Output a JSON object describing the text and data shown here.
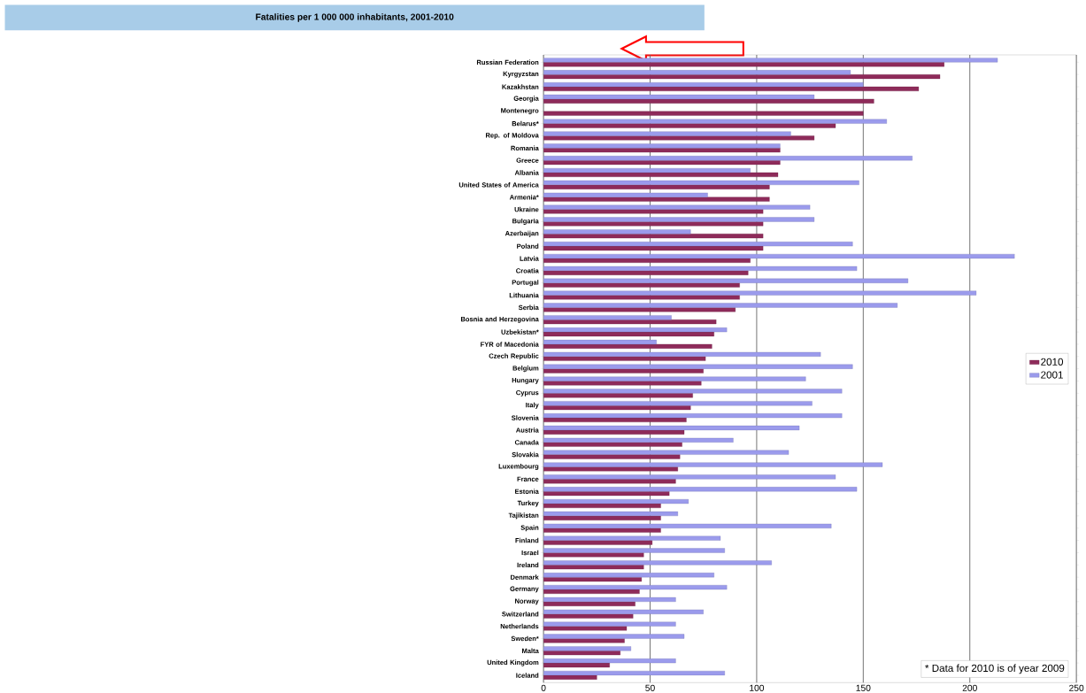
{
  "chart_data": {
    "type": "bar",
    "orientation": "horizontal",
    "title": "Fatalities per 1 000 000 inhabitants, 2001-2010",
    "categories": [
      "Russian Federation",
      "Kyrgyzstan",
      "Kazakhstan",
      "Georgia",
      "Montenegro",
      "Belarus*",
      "Rep. of Moldova",
      "Romania",
      "Greece",
      "Albania",
      "United States of America",
      "Armenia*",
      "Ukraine",
      "Bulgaria",
      "Azerbaijan",
      "Poland",
      "Latvia",
      "Croatia",
      "Portugal",
      "Lithuania",
      "Serbia",
      "Bosnia and Herzegovina",
      "Uzbekistan*",
      "FYR of Macedonia",
      "Czech Republic",
      "Belgium",
      "Hungary",
      "Cyprus",
      "Italy",
      "Slovenia",
      "Austria",
      "Canada",
      "Slovakia",
      "Luxembourg",
      "France",
      "Estonia",
      "Turkey",
      "Tajikistan",
      "Spain",
      "Finland",
      "Israel",
      "Ireland",
      "Denmark",
      "Germany",
      "Norway",
      "Switzerland",
      "Netherlands",
      "Sweden*",
      "Malta",
      "United Kingdom",
      "Iceland"
    ],
    "series": [
      {
        "name": "2010",
        "color": "#8e2b5a",
        "values": [
          188,
          186,
          176,
          155,
          150,
          137,
          127,
          111,
          111,
          110,
          106,
          106,
          103,
          103,
          103,
          103,
          97,
          96,
          92,
          92,
          90,
          81,
          80,
          79,
          76,
          75,
          74,
          70,
          69,
          67,
          66,
          65,
          64,
          63,
          62,
          59,
          55,
          55,
          55,
          51,
          47,
          47,
          46,
          45,
          43,
          42,
          39,
          38,
          36,
          31,
          25
        ]
      },
      {
        "name": "2001",
        "color": "#9b9bec",
        "values": [
          213,
          144,
          150,
          127,
          null,
          161,
          116,
          111,
          173,
          97,
          148,
          77,
          125,
          127,
          69,
          145,
          221,
          147,
          171,
          203,
          166,
          60,
          86,
          53,
          130,
          145,
          123,
          140,
          126,
          140,
          120,
          89,
          115,
          159,
          137,
          147,
          68,
          63,
          135,
          83,
          85,
          107,
          80,
          86,
          62,
          75,
          62,
          66,
          41,
          62,
          85
        ]
      }
    ],
    "xlim": [
      0,
      250
    ],
    "xticks": [
      0,
      50,
      100,
      150,
      200,
      250
    ],
    "grid": "x",
    "legend": "right",
    "annotations": [
      "* Data for 2010 is of year 2009"
    ]
  }
}
